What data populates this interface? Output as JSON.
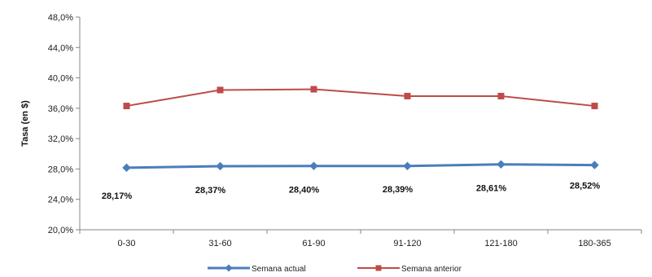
{
  "chart_data": {
    "type": "line",
    "ylabel": "Tasa (en $)",
    "xlabel": "",
    "categories": [
      "0-30",
      "31-60",
      "61-90",
      "91-120",
      "121-180",
      "180-365"
    ],
    "ylim": [
      20,
      48
    ],
    "ytick_step": 4,
    "ytick_labels": [
      "20,0%",
      "24,0%",
      "28,0%",
      "32,0%",
      "36,0%",
      "40,0%",
      "44,0%",
      "48,0%"
    ],
    "grid": false,
    "legend_position": "bottom",
    "series": [
      {
        "name": "Semana actual",
        "color": "#4a7ebb",
        "marker": "diamond",
        "values": [
          28.17,
          28.37,
          28.4,
          28.39,
          28.61,
          28.52
        ],
        "data_labels": [
          "28,17%",
          "28,37%",
          "28,40%",
          "28,39%",
          "28,61%",
          "28,52%"
        ]
      },
      {
        "name": "Semana anterior",
        "color": "#be4b48",
        "marker": "square",
        "values": [
          36.3,
          38.4,
          38.5,
          37.6,
          37.6,
          36.3
        ]
      }
    ]
  }
}
